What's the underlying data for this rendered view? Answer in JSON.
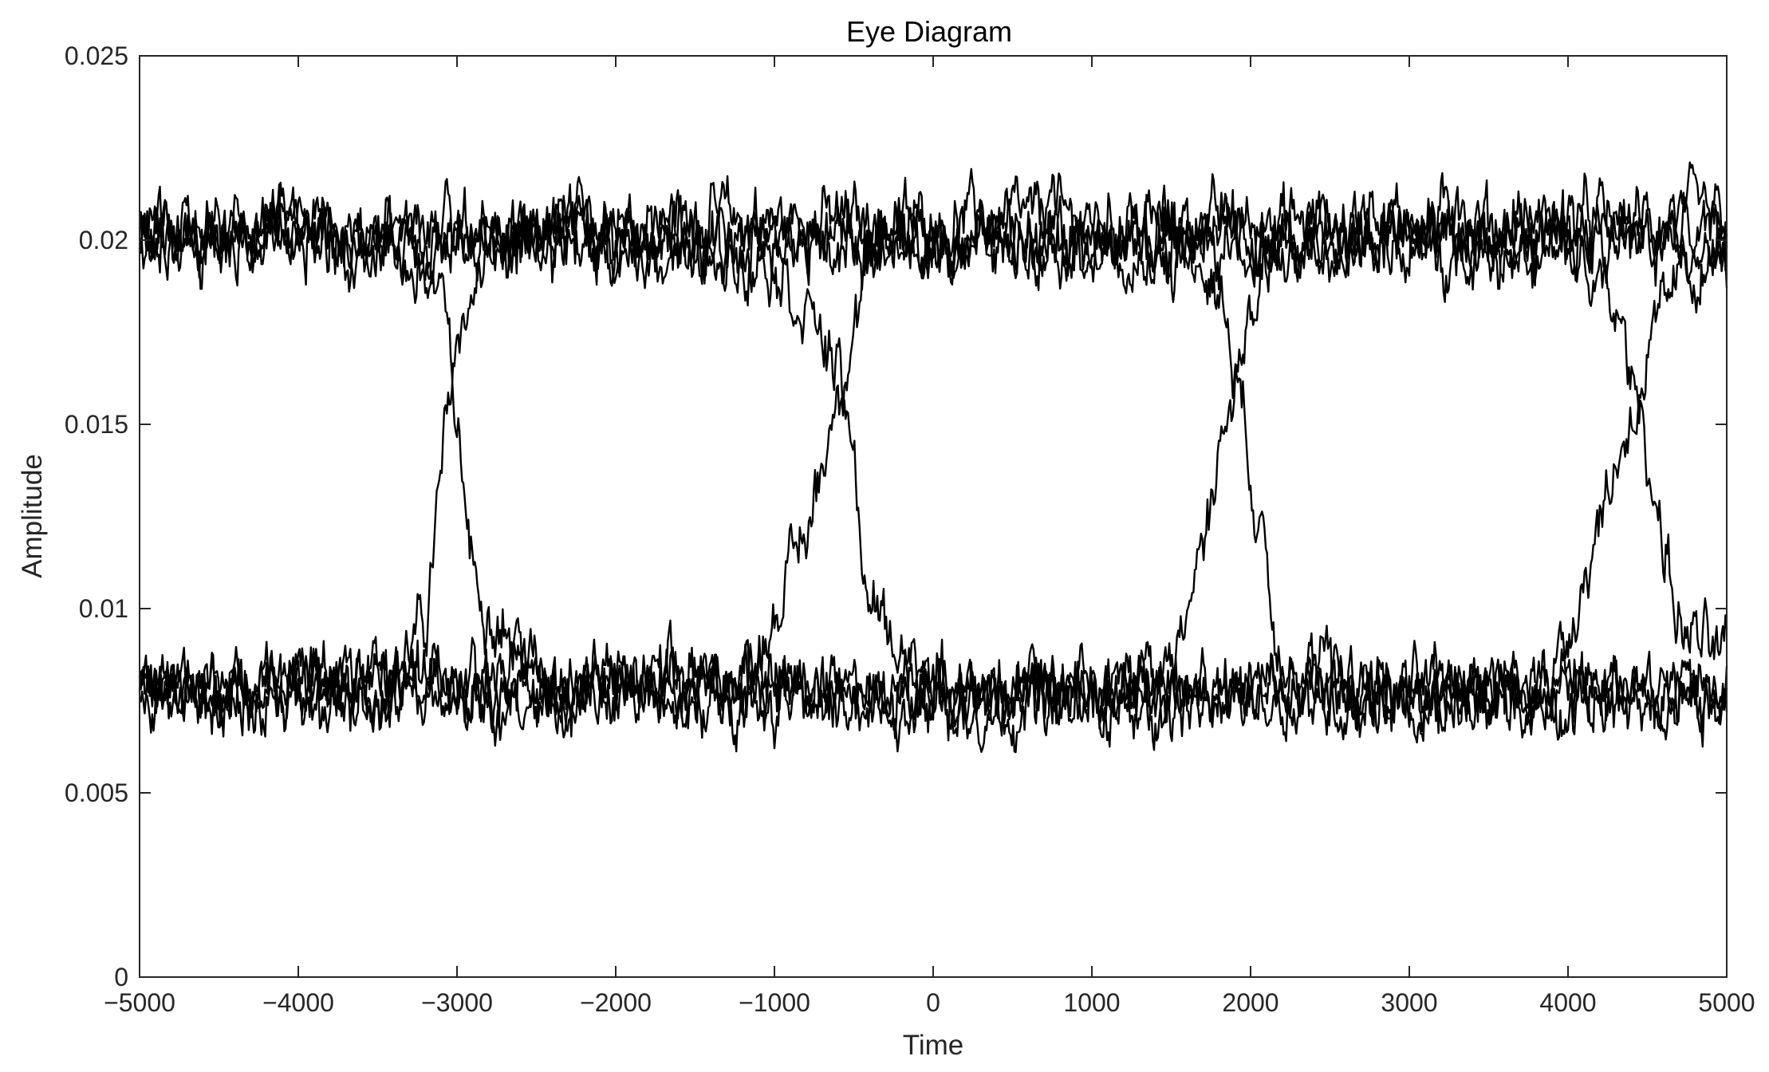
{
  "chart_data": {
    "type": "line",
    "title": "Eye Diagram",
    "xlabel": "Time",
    "ylabel": "Amplitude",
    "xlim": [
      -5000,
      5000
    ],
    "ylim": [
      0,
      0.025
    ],
    "x_ticks": [
      -5000,
      -4000,
      -3000,
      -2000,
      -1000,
      0,
      1000,
      2000,
      3000,
      4000,
      5000
    ],
    "x_tick_labels": [
      "−5000",
      "−4000",
      "−3000",
      "−2000",
      "−1000",
      "0",
      "1000",
      "2000",
      "3000",
      "4000",
      "5000"
    ],
    "y_ticks": [
      0,
      0.005,
      0.01,
      0.015,
      0.02,
      0.025
    ],
    "y_tick_labels": [
      "0",
      "0.005",
      "0.01",
      "0.015",
      "0.02",
      "0.025"
    ],
    "grid": false,
    "legend": "none",
    "line_color": "#000000",
    "levels": {
      "high": 0.02,
      "low": 0.0078
    },
    "series": [
      {
        "x": [
          -5000,
          -3800,
          -3500,
          -3200,
          -3000,
          -2800,
          -2000,
          -1000,
          0,
          1000,
          2000,
          3000,
          4000,
          5000
        ],
        "y": [
          0.0077,
          0.0078,
          0.0078,
          0.0095,
          0.0175,
          0.0195,
          0.0205,
          0.0205,
          0.0205,
          0.0205,
          0.0205,
          0.0205,
          0.0205,
          0.0205
        ]
      },
      {
        "x": [
          -5000,
          -4000,
          -3500,
          -3100,
          -3000,
          -2900,
          -2500,
          -1000,
          0,
          1000,
          2000,
          3000,
          4000,
          5000
        ],
        "y": [
          0.0195,
          0.0205,
          0.02,
          0.0185,
          0.015,
          0.011,
          0.0082,
          0.0075,
          0.0075,
          0.0075,
          0.0075,
          0.0075,
          0.0075,
          0.0075
        ]
      },
      {
        "x": [
          -5000,
          -4000,
          -3000,
          -2000,
          -1200,
          -800,
          -600,
          -400,
          0,
          1000,
          2000,
          3000,
          4000,
          5000
        ],
        "y": [
          0.008,
          0.008,
          0.008,
          0.008,
          0.008,
          0.012,
          0.016,
          0.0195,
          0.02,
          0.02,
          0.02,
          0.02,
          0.02,
          0.02
        ]
      },
      {
        "x": [
          -5000,
          -4000,
          -3000,
          -2000,
          -1000,
          -700,
          -550,
          -400,
          0,
          1000,
          2000,
          3000,
          4000,
          5000
        ],
        "y": [
          0.02,
          0.02,
          0.02,
          0.02,
          0.0195,
          0.0175,
          0.0155,
          0.01,
          0.0078,
          0.0078,
          0.0078,
          0.0078,
          0.0078,
          0.0078
        ]
      },
      {
        "x": [
          -5000,
          -4000,
          -3000,
          -2000,
          -1000,
          0,
          1000,
          1500,
          1700,
          1850,
          2100,
          3000,
          4000,
          5000
        ],
        "y": [
          0.0078,
          0.0078,
          0.0078,
          0.0078,
          0.0078,
          0.0078,
          0.0078,
          0.008,
          0.012,
          0.015,
          0.0195,
          0.02,
          0.02,
          0.02
        ]
      },
      {
        "x": [
          -5000,
          -4000,
          -3000,
          -2000,
          -1000,
          0,
          1000,
          1700,
          1850,
          2000,
          2200,
          3000,
          4000,
          5000
        ],
        "y": [
          0.02,
          0.02,
          0.02,
          0.02,
          0.02,
          0.02,
          0.02,
          0.0195,
          0.018,
          0.014,
          0.0085,
          0.0078,
          0.0078,
          0.0078
        ]
      },
      {
        "x": [
          -5000,
          -4000,
          -3000,
          -2000,
          -1000,
          0,
          1000,
          2000,
          3000,
          3900,
          4200,
          4450,
          4700,
          5000
        ],
        "y": [
          0.0078,
          0.0078,
          0.0078,
          0.0078,
          0.0078,
          0.0078,
          0.0078,
          0.0078,
          0.0078,
          0.008,
          0.0125,
          0.016,
          0.019,
          0.0195
        ]
      },
      {
        "x": [
          -5000,
          -4000,
          -3000,
          -2000,
          -1000,
          0,
          1000,
          2000,
          3000,
          4000,
          4300,
          4450,
          4700,
          5000
        ],
        "y": [
          0.02,
          0.02,
          0.02,
          0.02,
          0.02,
          0.02,
          0.02,
          0.02,
          0.02,
          0.0198,
          0.018,
          0.0155,
          0.0095,
          0.0085
        ]
      }
    ]
  }
}
